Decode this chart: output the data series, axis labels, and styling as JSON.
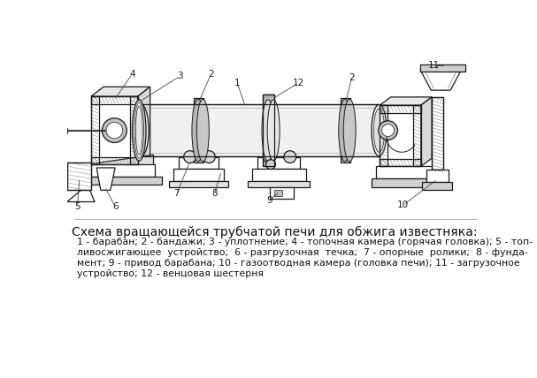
{
  "title": "Схема вращающейся трубчатой печи для обжига известняка:",
  "caption_lines": [
    "1 - барабан; 2 - бандажи; 3 - уплотнение; 4 - топочная камера (горячая головка); 5 - топ-",
    "ливосжигающее  устройство;  6 - разгрузочная  течка;  7 - опорные  ролики;  8 - фунда-",
    "мент; 9 - привод барабана; 10 - газоотводная камера (головка печи); 11 - загрузочное",
    "устройство; 12 - венцовая шестерня"
  ],
  "bg_color": "#ffffff",
  "line_color": "#1a1a1a",
  "text_color": "#111111"
}
